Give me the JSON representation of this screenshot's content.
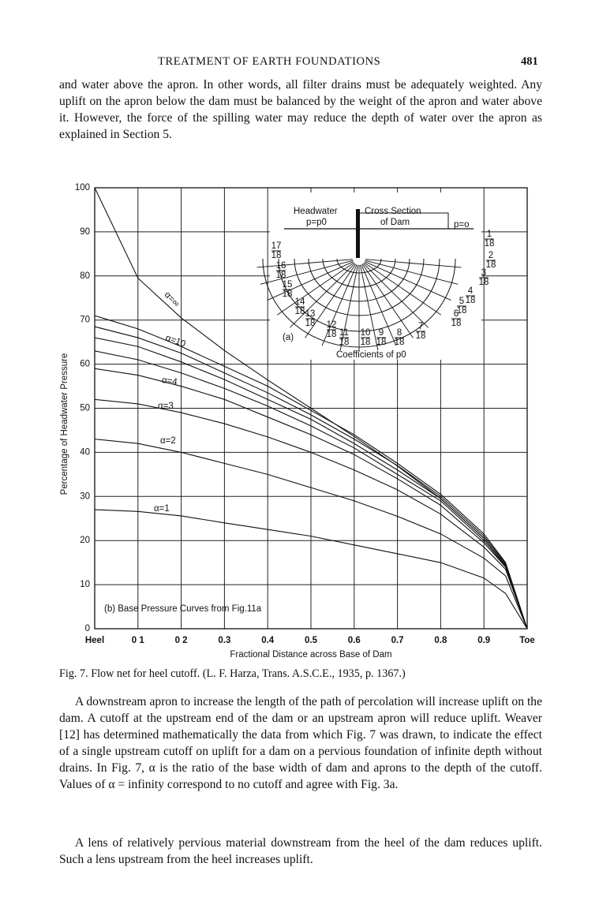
{
  "header": {
    "title": "TREATMENT OF EARTH FOUNDATIONS",
    "page": "481"
  },
  "paragraphs": [
    "and water above the apron. In other words, all filter drains must be adequately weighted. Any uplift on the apron below the dam must be balanced by the weight of the apron and water above it. However, the force of the spilling water may reduce the depth of water over the apron as explained in Section 5.",
    "A downstream apron to increase the length of the path of percolation will increase uplift on the dam. A cutoff at the upstream end of the dam or an upstream apron will reduce uplift. Weaver [12] has determined mathematically the data from which Fig. 7 was drawn, to indicate the effect of a single upstream cutoff on uplift for a dam on a pervious foundation of infinite depth without drains. In Fig. 7, α is the ratio of the base width of dam and aprons to the depth of the cutoff. Values of α = infinity correspond to no cutoff and agree with Fig. 3a.",
    "A lens of relatively pervious material downstream from the heel of the dam reduces uplift. Such a lens upstream from the heel increases uplift."
  ],
  "caption": "Fig. 7. Flow net for heel cutoff. (L. F. Harza, Trans. A.S.C.E., 1935, p. 1367.)",
  "chart_data": {
    "type": "line",
    "xlabel": "Fractional Distance across Base of Dam",
    "ylabel": "Percentage of Headwater Pressure",
    "annotation": "(b) Base Pressure Curves from Fig.11a",
    "x": [
      0,
      0.1,
      0.2,
      0.3,
      0.4,
      0.5,
      0.6,
      0.7,
      0.8,
      0.9,
      0.95,
      1
    ],
    "xlim": [
      0,
      1
    ],
    "xticks": [
      {
        "value": 0,
        "label": "Heel"
      },
      {
        "value": 0.1,
        "label": "0 1"
      },
      {
        "value": 0.2,
        "label": "0 2"
      },
      0.3,
      0.4,
      0.5,
      0.6,
      0.7,
      0.8,
      0.9,
      {
        "value": 1,
        "label": "Toe"
      }
    ],
    "ylim": [
      0,
      100
    ],
    "yticks": [
      0,
      10,
      20,
      30,
      40,
      50,
      60,
      70,
      80,
      90,
      100
    ],
    "grid": true,
    "color": "#111111",
    "series": [
      {
        "name": "α=∞",
        "values": [
          100,
          79.5,
          70.5,
          63.1,
          56.4,
          50,
          43.6,
          36.9,
          29.5,
          20.5,
          14.4,
          0
        ]
      },
      {
        "name": "α=10",
        "values": [
          71,
          68,
          64,
          59.5,
          55,
          49.5,
          44,
          37.5,
          30.5,
          21.5,
          15,
          0
        ]
      },
      {
        "values": [
          68.5,
          66,
          62.5,
          58,
          53.5,
          48.5,
          43,
          37,
          30,
          21,
          14.8,
          0
        ]
      },
      {
        "values": [
          66,
          64,
          60.5,
          56.5,
          52,
          47.5,
          42,
          36,
          29.5,
          20.5,
          14.5,
          0
        ]
      },
      {
        "values": [
          63,
          61,
          58,
          54.5,
          50.5,
          46,
          41,
          35,
          29,
          20,
          14.2,
          0
        ]
      },
      {
        "name": "α=4",
        "values": [
          59,
          57.5,
          55,
          52,
          48,
          44,
          39.5,
          34,
          28,
          19.5,
          14,
          0
        ]
      },
      {
        "name": "α=3",
        "values": [
          52,
          51,
          49,
          46.5,
          43.5,
          40,
          36,
          31.5,
          26,
          18.5,
          13.5,
          0
        ]
      },
      {
        "name": "α=2",
        "values": [
          43,
          42,
          40,
          37.5,
          35,
          32,
          29,
          25.5,
          21.5,
          16,
          12,
          0
        ]
      },
      {
        "name": "α=1",
        "values": [
          27,
          26.6,
          25.6,
          24,
          22.5,
          21,
          19,
          17,
          15,
          11.5,
          8,
          0
        ]
      }
    ],
    "inset": {
      "headwater": "Headwater",
      "p_upstream": "p=p0",
      "section": "Cross Section",
      "section2": "of Dam",
      "p_downstream": "p=o",
      "label": "(a)",
      "coefficients": "Coefficients of p0",
      "fractions": [
        {
          "num": "1",
          "den": "18"
        },
        {
          "num": "2",
          "den": "18"
        },
        {
          "num": "3",
          "den": "18"
        },
        {
          "num": "4",
          "den": "18"
        },
        {
          "num": "5",
          "den": "18"
        },
        {
          "num": "6",
          "den": "18"
        },
        {
          "num": "7",
          "den": "18"
        },
        {
          "num": "8",
          "den": "18"
        },
        {
          "num": "9",
          "den": "18"
        },
        {
          "num": "10",
          "den": "18"
        },
        {
          "num": "11",
          "den": "18"
        },
        {
          "num": "12",
          "den": "18"
        },
        {
          "num": "13",
          "den": "18"
        },
        {
          "num": "14",
          "den": "18"
        },
        {
          "num": "15",
          "den": "18"
        },
        {
          "num": "16",
          "den": "18"
        },
        {
          "num": "17",
          "den": "18"
        }
      ]
    }
  }
}
